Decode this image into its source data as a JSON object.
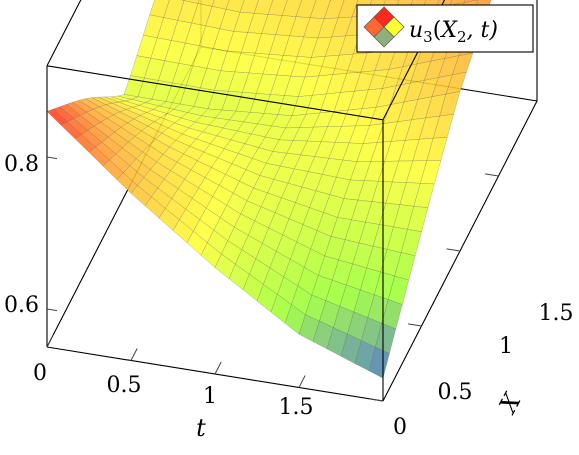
{
  "chart_data": {
    "type": "surface3d",
    "title": "",
    "x_axis": {
      "label": "t",
      "range": [
        0,
        2
      ],
      "ticks": [
        "0",
        "0.5",
        "1",
        "1.5"
      ]
    },
    "y_axis": {
      "label": "X",
      "range": [
        0,
        2
      ],
      "ticks": [
        "0",
        "0.5",
        "1",
        "1.5"
      ]
    },
    "z_axis": {
      "label": "",
      "range": [
        0.55,
        0.92
      ],
      "ticks": [
        "0.6",
        "0.8"
      ]
    },
    "legend": {
      "entries": [
        "u3(X2, t)"
      ],
      "position": "top-right"
    },
    "grid": false,
    "colormap": [
      "#1f32ff",
      "#9aff33",
      "#ffff33",
      "#ffaa33",
      "#ff2a1a"
    ],
    "color_range": [
      0.56,
      0.86
    ],
    "approx_surface": {
      "t_values": [
        0.0,
        0.5,
        1.0,
        1.5,
        2.0
      ],
      "X_values": [
        0.0,
        1.0,
        2.0
      ],
      "z_values": [
        [
          0.86,
          0.7,
          0.79
        ],
        [
          0.77,
          0.69,
          0.78
        ],
        [
          0.69,
          0.69,
          0.79
        ],
        [
          0.62,
          0.71,
          0.81
        ],
        [
          0.58,
          0.74,
          0.85
        ]
      ]
    }
  },
  "legend_label": {
    "func": "u",
    "sub": "3",
    "open": "(",
    "arg": "X",
    "argsub": "2",
    "rest": ", t)"
  }
}
